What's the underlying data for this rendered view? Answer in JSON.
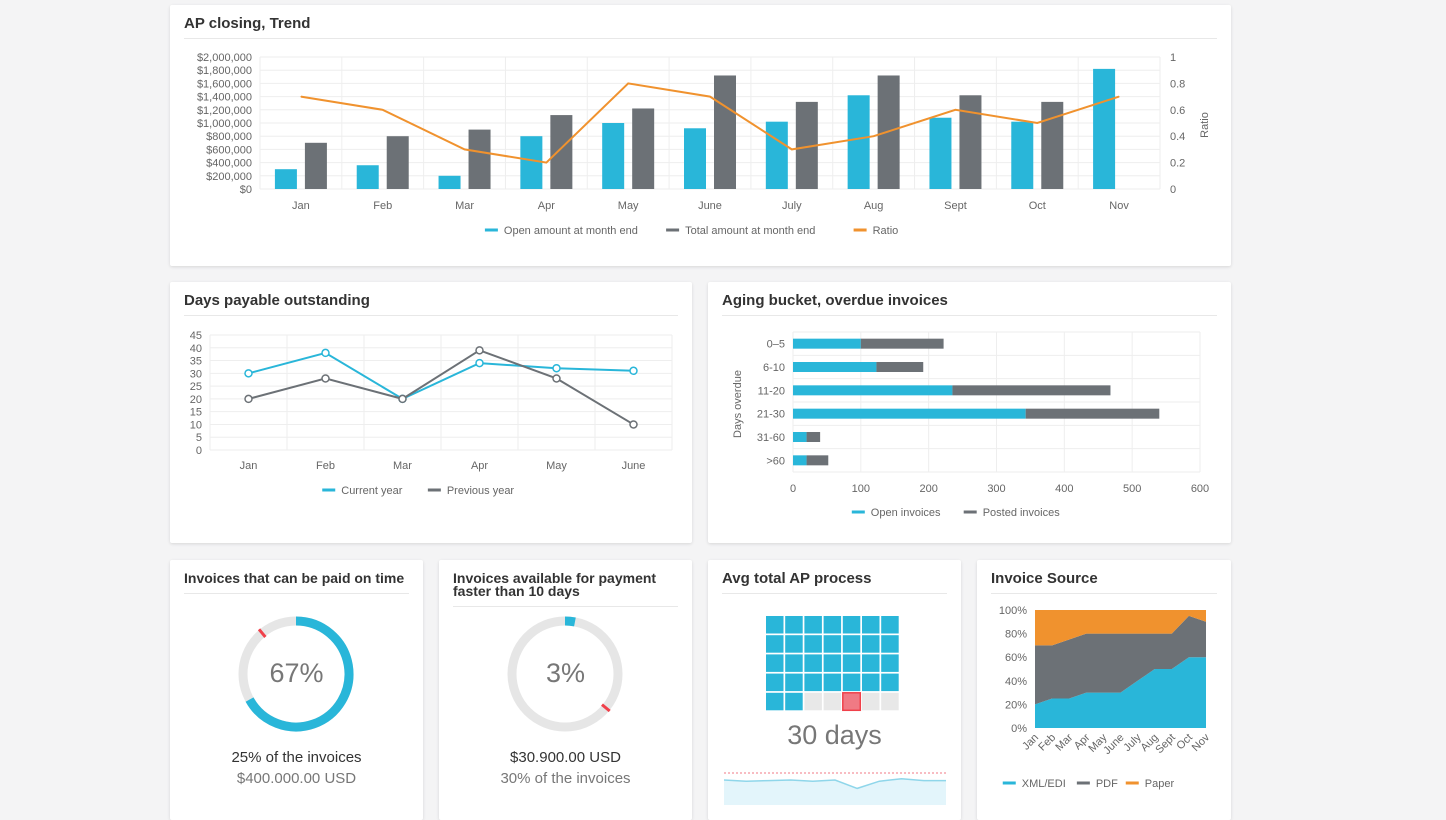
{
  "colors": {
    "open": "#29b6d9",
    "total": "#6c7176",
    "ratio": "#f0922e",
    "paper": "#f0922e",
    "alert": "#f0404a",
    "grid": "#eeeeee"
  },
  "trend": {
    "title": "AP closing, Trend",
    "y_right_label": "Ratio",
    "chart_data": {
      "type": "bar",
      "categories": [
        "Jan",
        "Feb",
        "Mar",
        "Apr",
        "May",
        "June",
        "July",
        "Aug",
        "Sept",
        "Oct",
        "Nov"
      ],
      "ylim": [
        0,
        2000000
      ],
      "y_ticks": [
        "$0",
        "$200,000",
        "$400,000",
        "$600,000",
        "$800,000",
        "$1,000,000",
        "$1,200,000",
        "$1,400,000",
        "$1,600,000",
        "$1,800,000",
        "$2,000,000"
      ],
      "y2lim": [
        0,
        1
      ],
      "y2_ticks": [
        "0",
        "0.2",
        "0.4",
        "0.6",
        "0.8",
        "1"
      ],
      "series": [
        {
          "name": "Open amount at month end",
          "type": "bar",
          "values": [
            300000,
            360000,
            200000,
            800000,
            1000000,
            920000,
            1020000,
            1420000,
            1080000,
            1020000,
            1820000
          ]
        },
        {
          "name": "Total amount at month end",
          "type": "bar",
          "values": [
            700000,
            800000,
            900000,
            1120000,
            1220000,
            1720000,
            1320000,
            1720000,
            1420000,
            1320000,
            null
          ]
        },
        {
          "name": "Ratio",
          "type": "line",
          "axis": "right",
          "values": [
            0.7,
            0.6,
            0.3,
            0.2,
            0.8,
            0.7,
            0.3,
            0.4,
            0.6,
            0.5,
            0.7
          ]
        }
      ],
      "legend": "bottom",
      "grid": true
    }
  },
  "dpo": {
    "title": "Days payable outstanding",
    "chart_data": {
      "type": "line",
      "categories": [
        "Jan",
        "Feb",
        "Mar",
        "Apr",
        "May",
        "June"
      ],
      "ylim": [
        0,
        45
      ],
      "y_ticks": [
        "0",
        "5",
        "10",
        "15",
        "20",
        "25",
        "30",
        "35",
        "40",
        "45"
      ],
      "series": [
        {
          "name": "Current year",
          "values": [
            30,
            38,
            20,
            34,
            32,
            31
          ]
        },
        {
          "name": "Previous year",
          "values": [
            20,
            28,
            20,
            39,
            28,
            10
          ]
        }
      ],
      "legend": "bottom",
      "grid": true
    }
  },
  "aging": {
    "title": "Aging bucket, overdue invoices",
    "chart_data": {
      "type": "bar",
      "orientation": "horizontal",
      "stacked": true,
      "categories": [
        "0–5",
        "6-10",
        "11-20",
        "21-30",
        "31-60",
        ">60"
      ],
      "ylabel": "Days overdue",
      "xlim": [
        0,
        600
      ],
      "x_ticks": [
        "0",
        "100",
        "200",
        "300",
        "400",
        "500",
        "600"
      ],
      "series": [
        {
          "name": "Open invoices",
          "values": [
            100,
            123,
            235,
            343,
            20,
            20
          ]
        },
        {
          "name": "Posted invoices",
          "values": [
            122,
            69,
            233,
            197,
            20,
            32
          ]
        }
      ],
      "legend": "bottom",
      "grid": true
    }
  },
  "ontime": {
    "title": "Invoices that can be paid on time",
    "percent": 67,
    "percent_label": "67%",
    "marker_percent": 89,
    "line1": "25% of the invoices",
    "line2": "$400.000.00 USD"
  },
  "faster": {
    "title": "Invoices available for payment faster than 10 days",
    "percent": 3,
    "percent_label": "3%",
    "marker_percent": 36,
    "line1": "$30.900.00 USD",
    "line2": "30% of the invoices"
  },
  "avgap": {
    "title": "Avg total AP process",
    "days_label": "30 days",
    "days": 30,
    "highlight_day": 32,
    "total_cells": 35,
    "sparkline": [
      52,
      50,
      51,
      52,
      50,
      52,
      38,
      50,
      54,
      51,
      51
    ]
  },
  "source": {
    "title": "Invoice Source",
    "chart_data": {
      "type": "area",
      "stacked": true,
      "categories": [
        "Jan",
        "Feb",
        "Mar",
        "Apr",
        "May",
        "June",
        "July",
        "Aug",
        "Sept",
        "Oct",
        "Nov"
      ],
      "ylim": [
        0,
        100
      ],
      "y_ticks": [
        "0%",
        "20%",
        "40%",
        "60%",
        "80%",
        "100%"
      ],
      "series": [
        {
          "name": "XML/EDI",
          "values": [
            20,
            25,
            25,
            30,
            30,
            30,
            40,
            50,
            50,
            60,
            60
          ]
        },
        {
          "name": "PDF",
          "values": [
            50,
            45,
            50,
            50,
            50,
            50,
            40,
            30,
            30,
            35,
            30
          ]
        },
        {
          "name": "Paper",
          "values": [
            30,
            30,
            25,
            20,
            20,
            20,
            20,
            20,
            20,
            5,
            10
          ]
        }
      ],
      "legend": "bottom"
    }
  }
}
